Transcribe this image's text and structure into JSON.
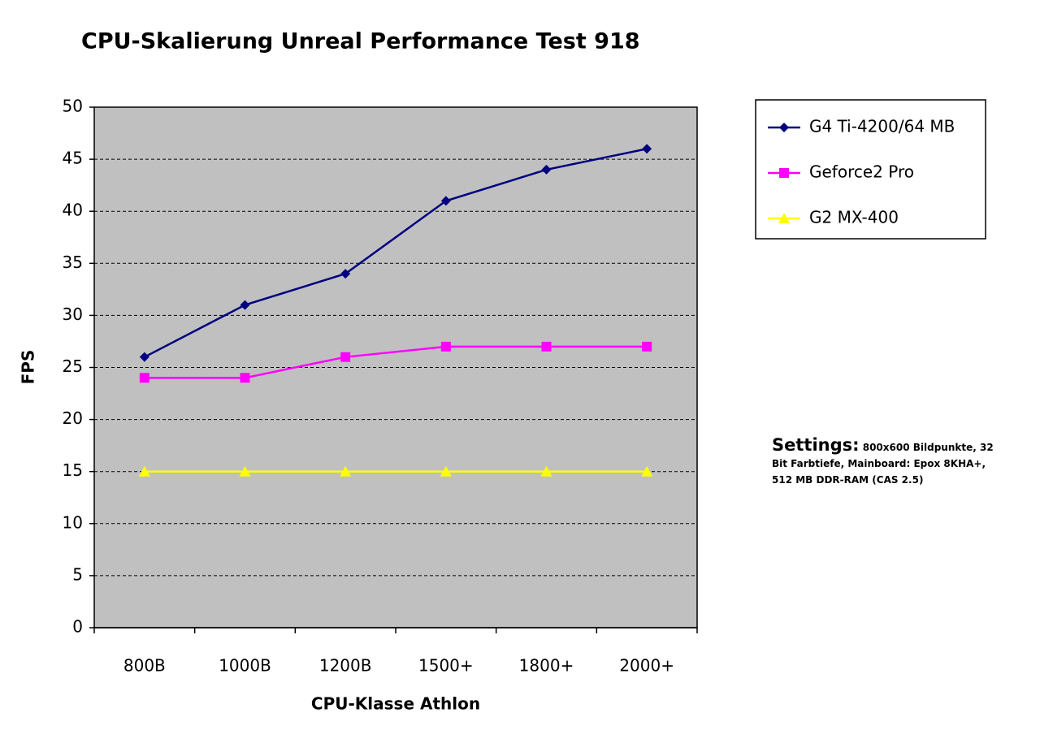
{
  "chart_data": {
    "type": "line",
    "title": "CPU-Skalierung Unreal Performance Test 918",
    "x_label": "CPU-Klasse Athlon",
    "y_label": "FPS",
    "categories": [
      "800B",
      "1000B",
      "1200B",
      "1500+",
      "1800+",
      "2000+"
    ],
    "series": [
      {
        "name": "G4 Ti-4200/64 MB",
        "color": "#000080",
        "marker": "diamond",
        "values": [
          26,
          31,
          34,
          41,
          44,
          46
        ]
      },
      {
        "name": "Geforce2 Pro",
        "color": "#ff00ff",
        "marker": "square",
        "values": [
          24,
          24,
          26,
          27,
          27,
          27
        ]
      },
      {
        "name": "G2 MX-400",
        "color": "#ffff00",
        "marker": "triangle",
        "values": [
          15,
          15,
          15,
          15,
          15,
          15
        ]
      }
    ],
    "ylim": [
      0,
      50
    ],
    "yticks": [
      0,
      5,
      10,
      15,
      20,
      25,
      30,
      35,
      40,
      45,
      50
    ],
    "grid": true,
    "plot_background": "#c0c0c0",
    "legend": "right",
    "annotation_title": "Settings:",
    "annotation": "800x600 Bildpunkte, 32 Bit Farbtiefe, Mainboard: Epox 8KHA+, 512 MB DDR-RAM (CAS 2.5)"
  }
}
